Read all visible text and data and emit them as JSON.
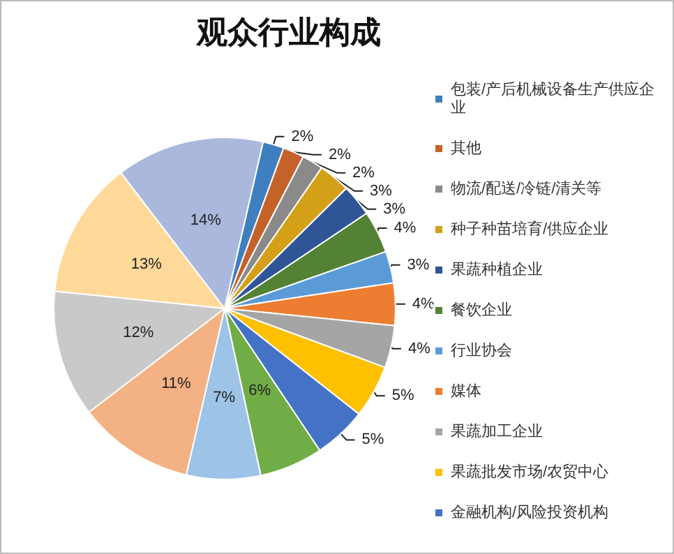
{
  "chart_data": {
    "type": "pie",
    "title": "观众行业构成",
    "categories": [
      "包装/产后机械设备生产供应企业",
      "其他",
      "物流/配送/冷链/清关等",
      "种子种苗培育/供应企业",
      "果蔬种植企业",
      "餐饮企业",
      "行业协会",
      "媒体",
      "果蔬加工企业",
      "果蔬批发市场/农贸中心",
      "金融机构/风险投资机构",
      null,
      null,
      null,
      null,
      null,
      null
    ],
    "values": [
      2,
      2,
      2,
      3,
      3,
      4,
      3,
      4,
      4,
      5,
      5,
      6,
      7,
      11,
      12,
      13,
      14
    ],
    "value_labels": [
      "2%",
      "2%",
      "2%",
      "3%",
      "3%",
      "4%",
      "3%",
      "4%",
      "4%",
      "5%",
      "5%",
      "6%",
      "7%",
      "11%",
      "12%",
      "13%",
      "14%"
    ],
    "colors": [
      "#3f7fbf",
      "#c5622a",
      "#8a8a8a",
      "#d4a017",
      "#2f5597",
      "#548235",
      "#5b9bd5",
      "#ed7d31",
      "#a5a5a5",
      "#ffc000",
      "#4472c4",
      "#70ad47",
      "#9dc3e6",
      "#f4b183",
      "#c9c9c9",
      "#ffd999",
      "#a9b8dc"
    ],
    "legend": "right",
    "marker": "square"
  }
}
